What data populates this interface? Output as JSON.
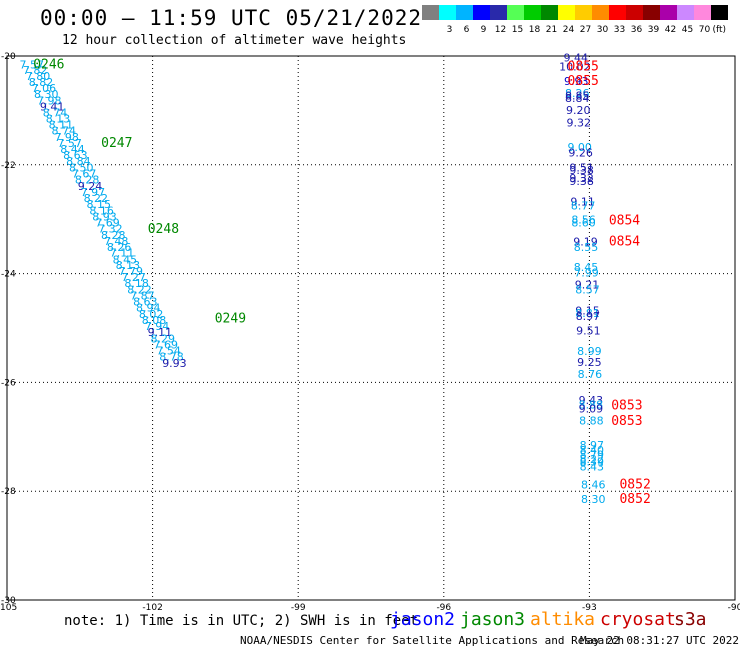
{
  "header": {
    "title": "00:00 – 11:59 UTC 05/21/2022",
    "subtitle": "12 hour collection of altimeter wave heights"
  },
  "colorbar": {
    "unit": "(ft)",
    "bins": [
      {
        "label": "",
        "color": "#808080"
      },
      {
        "label": "3",
        "color": "#00ffff"
      },
      {
        "label": "6",
        "color": "#00b4ff"
      },
      {
        "label": "9",
        "color": "#0000ff"
      },
      {
        "label": "12",
        "color": "#2929aa"
      },
      {
        "label": "15",
        "color": "#55ff55"
      },
      {
        "label": "18",
        "color": "#00cc00"
      },
      {
        "label": "21",
        "color": "#008800"
      },
      {
        "label": "24",
        "color": "#ffff00"
      },
      {
        "label": "27",
        "color": "#ffcc00"
      },
      {
        "label": "30",
        "color": "#ff8c00"
      },
      {
        "label": "33",
        "color": "#ff0000"
      },
      {
        "label": "36",
        "color": "#cc0000"
      },
      {
        "label": "39",
        "color": "#880000"
      },
      {
        "label": "42",
        "color": "#aa00aa"
      },
      {
        "label": "45",
        "color": "#cc88ff"
      },
      {
        "label": "70",
        "color": "#ff88dd"
      },
      {
        "label": "",
        "color": "#000000"
      }
    ]
  },
  "footer": {
    "note": "note: 1) Time is in UTC; 2) SWH is in feet",
    "credit": "NOAA/NESDIS Center for Satellite Applications and Research",
    "generated": "May 22 08:31:27 UTC 2022",
    "satellites": [
      {
        "name": "jason2",
        "color": "#0000ff"
      },
      {
        "name": "jason3",
        "color": "#008800"
      },
      {
        "name": "altika",
        "color": "#ff8c00"
      },
      {
        "name": "cryosat",
        "color": "#cc0000"
      },
      {
        "name": "s3a",
        "color": "#880000"
      }
    ]
  },
  "chart_data": {
    "type": "scatter",
    "xlabel": "",
    "ylabel": "",
    "xlim": [
      -105,
      -90
    ],
    "ylim": [
      -30,
      -20
    ],
    "xticks": [
      -105,
      -102,
      -99,
      -96,
      -93,
      -90
    ],
    "yticks": [
      -20,
      -22,
      -24,
      -26,
      -28,
      -30
    ],
    "grid": true,
    "series": [
      {
        "color": "#00aaee",
        "points": [
          [
            -104.49,
            -20.23,
            "7.57",
            "#00aaee"
          ],
          [
            -104.42,
            -20.33,
            "7.82",
            "#00aaee"
          ],
          [
            -104.36,
            -20.44,
            "7.80",
            "#00aaee"
          ],
          [
            -104.3,
            -20.55,
            "8.82",
            "#00aaee"
          ],
          [
            -104.24,
            -20.66,
            "7.06",
            "#00aaee"
          ],
          [
            -104.19,
            -20.77,
            "8.30",
            "#00aaee"
          ],
          [
            -104.13,
            -20.89,
            "7.98",
            "#00aaee"
          ],
          [
            -104.07,
            -21.0,
            "9.41",
            "#1a1aaa"
          ],
          [
            -104.01,
            -21.11,
            "8.74",
            "#00aaee"
          ],
          [
            -103.95,
            -21.22,
            "8.13",
            "#00aaee"
          ],
          [
            -103.89,
            -21.33,
            "8.11",
            "#00aaee"
          ],
          [
            -103.83,
            -21.44,
            "8.74",
            "#00aaee"
          ],
          [
            -103.77,
            -21.56,
            "7.98",
            "#00aaee"
          ],
          [
            -103.71,
            -21.67,
            "7.57",
            "#00aaee"
          ],
          [
            -103.65,
            -21.78,
            "8.44",
            "#00aaee"
          ],
          [
            -103.59,
            -21.89,
            "8.63",
            "#00aaee"
          ],
          [
            -103.53,
            -22.0,
            "8.84",
            "#00aaee"
          ],
          [
            -103.47,
            -22.12,
            "8.50",
            "#00aaee"
          ],
          [
            -103.41,
            -22.23,
            "7.67",
            "#00aaee"
          ],
          [
            -103.35,
            -22.34,
            "8.28",
            "#00aaee"
          ],
          [
            -103.29,
            -22.46,
            "9.24",
            "#1a1aaa"
          ],
          [
            -103.23,
            -22.57,
            "7.97",
            "#00aaee"
          ],
          [
            -103.17,
            -22.68,
            "8.22",
            "#00aaee"
          ],
          [
            -103.11,
            -22.79,
            "8.15",
            "#00aaee"
          ],
          [
            -103.05,
            -22.91,
            "8.16",
            "#00aaee"
          ],
          [
            -102.99,
            -23.02,
            "8.93",
            "#00aaee"
          ],
          [
            -102.93,
            -23.13,
            "7.69",
            "#00aaee"
          ],
          [
            -102.87,
            -23.24,
            "7.32",
            "#00aaee"
          ],
          [
            -102.81,
            -23.36,
            "8.28",
            "#00aaee"
          ],
          [
            -102.75,
            -23.47,
            "7.48",
            "#00aaee"
          ],
          [
            -102.69,
            -23.58,
            "8.26",
            "#00aaee"
          ],
          [
            -102.63,
            -23.69,
            "7.11",
            "#00aaee"
          ],
          [
            -102.57,
            -23.81,
            "8.45",
            "#00aaee"
          ],
          [
            -102.51,
            -23.92,
            "8.13",
            "#00aaee"
          ],
          [
            -102.45,
            -24.03,
            "7.79",
            "#00aaee"
          ],
          [
            -102.39,
            -24.14,
            "7.27",
            "#00aaee"
          ],
          [
            -102.33,
            -24.25,
            "8.18",
            "#00aaee"
          ],
          [
            -102.27,
            -24.37,
            "8.22",
            "#00aaee"
          ],
          [
            -102.21,
            -24.48,
            "7.87",
            "#00aaee"
          ],
          [
            -102.15,
            -24.59,
            "8.63",
            "#00aaee"
          ],
          [
            -102.09,
            -24.7,
            "8.94",
            "#00aaee"
          ],
          [
            -102.03,
            -24.82,
            "8.02",
            "#00aaee"
          ],
          [
            -101.97,
            -24.93,
            "8.08",
            "#00aaee"
          ],
          [
            -101.91,
            -25.04,
            "7.94",
            "#00aaee"
          ],
          [
            -101.85,
            -25.15,
            "9.11",
            "#1a1aaa"
          ],
          [
            -101.79,
            -25.27,
            "8.29",
            "#00aaee"
          ],
          [
            -101.73,
            -25.38,
            "7.69",
            "#00aaee"
          ],
          [
            -101.67,
            -25.49,
            "7.54",
            "#00aaee"
          ],
          [
            -101.61,
            -25.6,
            "8.78",
            "#00aaee"
          ],
          [
            -101.55,
            -25.72,
            "9.93",
            "#1a1aaa"
          ]
        ]
      },
      {
        "color": "#1a1aaa",
        "points": [
          [
            -93.28,
            -20.1,
            "9.44",
            "#1a1aaa"
          ],
          [
            -93.3,
            -20.27,
            "10.02",
            "#1a1aaa"
          ],
          [
            -93.27,
            -20.53,
            "9.93",
            "#0000cc"
          ],
          [
            -93.25,
            -20.75,
            "8.26",
            "#00aaee"
          ],
          [
            -93.25,
            -20.8,
            "8.85",
            "#1a1aaa"
          ],
          [
            -93.25,
            -20.85,
            "8.84",
            "#1a1aaa"
          ],
          [
            -93.23,
            -21.07,
            "9.20",
            "#1a1aaa"
          ],
          [
            -93.22,
            -21.3,
            "9.32",
            "#1a1aaa"
          ],
          [
            -93.2,
            -21.75,
            "9.00",
            "#00aaee"
          ],
          [
            -93.18,
            -21.85,
            "9.26",
            "#1a1aaa"
          ],
          [
            -93.16,
            -22.12,
            "9.51",
            "#1a1aaa"
          ],
          [
            -93.16,
            -22.17,
            "9.38",
            "#1a1aaa"
          ],
          [
            -93.16,
            -22.32,
            "9.32",
            "#1a1aaa"
          ],
          [
            -93.16,
            -22.37,
            "9.38",
            "#1a1aaa"
          ],
          [
            -93.14,
            -22.75,
            "9.11",
            "#1a1aaa"
          ],
          [
            -93.13,
            -22.82,
            "8.77",
            "#00aaee"
          ],
          [
            -93.12,
            -23.08,
            "8.56",
            "#00aaee"
          ],
          [
            -93.12,
            -23.13,
            "8.60",
            "#00aaee"
          ],
          [
            -93.08,
            -23.48,
            "9.19",
            "#1a1aaa"
          ],
          [
            -93.07,
            -23.58,
            "8.55",
            "#00aaee"
          ],
          [
            -93.07,
            -23.95,
            "8.45",
            "#00aaee"
          ],
          [
            -93.06,
            -24.05,
            "7.99",
            "#00aaee"
          ],
          [
            -93.05,
            -24.27,
            "9.21",
            "#1a1aaa"
          ],
          [
            -93.04,
            -24.37,
            "8.57",
            "#00aaee"
          ],
          [
            -93.04,
            -24.75,
            "9.15",
            "#1a1aaa"
          ],
          [
            -93.04,
            -24.8,
            "8.81",
            "#00aaee"
          ],
          [
            -93.03,
            -24.85,
            "8.97",
            "#1a1aaa"
          ],
          [
            -93.02,
            -25.12,
            "9.51",
            "#1a1aaa"
          ],
          [
            -93.0,
            -25.5,
            "8.99",
            "#00aaee"
          ],
          [
            -93.0,
            -25.7,
            "9.25",
            "#1a1aaa"
          ],
          [
            -92.99,
            -25.92,
            "8.76",
            "#00aaee"
          ],
          [
            -92.97,
            -26.4,
            "9.43",
            "#1a1aaa"
          ],
          [
            -92.97,
            -26.48,
            "8.88",
            "#00aaee"
          ],
          [
            -92.97,
            -26.55,
            "9.09",
            "#1a1aaa"
          ],
          [
            -92.96,
            -26.77,
            "8.88",
            "#00aaee"
          ],
          [
            -92.95,
            -27.22,
            "8.97",
            "#00aaee"
          ],
          [
            -92.95,
            -27.32,
            "8.40",
            "#00aaee"
          ],
          [
            -92.95,
            -27.4,
            "8.79",
            "#00aaee"
          ],
          [
            -92.95,
            -27.48,
            "8.22",
            "#00aaee"
          ],
          [
            -92.95,
            -27.53,
            "8.39",
            "#00aaee"
          ],
          [
            -92.95,
            -27.62,
            "8.43",
            "#00aaee"
          ],
          [
            -92.92,
            -27.95,
            "8.46",
            "#00aaee"
          ],
          [
            -92.92,
            -28.22,
            "8.30",
            "#00aaee"
          ]
        ]
      }
    ],
    "time_labels": [
      {
        "x": -104.46,
        "y": -20.23,
        "text": "0246",
        "color": "#008800"
      },
      {
        "x": -103.06,
        "y": -21.67,
        "text": "0247",
        "color": "#008800"
      },
      {
        "x": -102.1,
        "y": -23.25,
        "text": "0248",
        "color": "#008800"
      },
      {
        "x": -100.72,
        "y": -24.9,
        "text": "0249",
        "color": "#008800"
      },
      {
        "x": -93.45,
        "y": -20.27,
        "text": "0855",
        "color": "#ff0000"
      },
      {
        "x": -93.45,
        "y": -20.53,
        "text": "0855",
        "color": "#ff0000"
      },
      {
        "x": -92.6,
        "y": -23.1,
        "text": "0854",
        "color": "#ff0000"
      },
      {
        "x": -92.6,
        "y": -23.48,
        "text": "0854",
        "color": "#ff0000"
      },
      {
        "x": -92.55,
        "y": -26.5,
        "text": "0853",
        "color": "#ff0000"
      },
      {
        "x": -92.55,
        "y": -26.78,
        "text": "0853",
        "color": "#ff0000"
      },
      {
        "x": -92.38,
        "y": -27.95,
        "text": "0852",
        "color": "#ff0000"
      },
      {
        "x": -92.38,
        "y": -28.22,
        "text": "0852",
        "color": "#ff0000"
      }
    ]
  }
}
